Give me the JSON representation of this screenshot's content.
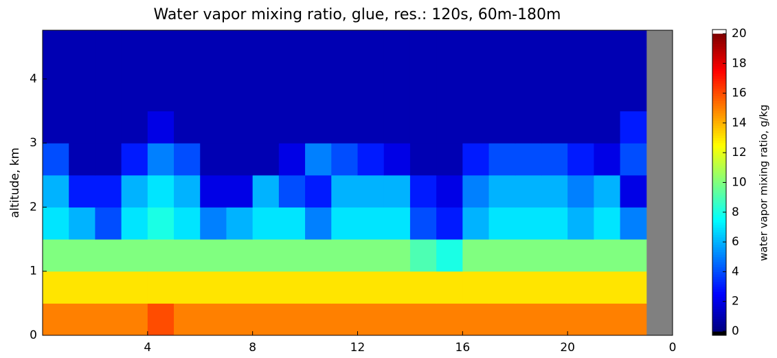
{
  "chart_data": {
    "type": "heatmap",
    "title": "Water vapor mixing ratio, glue, res.: 120s, 60m-180m",
    "y_label": "altitude, km",
    "colorbar_label": "water vapor mixing ratio, g/kg",
    "colormap": "jet",
    "xlim": [
      0,
      24
    ],
    "xticks": [
      4,
      8,
      12,
      16,
      20,
      {
        "value": 24,
        "label": "0"
      }
    ],
    "ylim": [
      0,
      4.76
    ],
    "yticks": [
      0,
      1,
      2,
      3,
      4
    ],
    "clim": [
      0,
      20
    ],
    "cticks": [
      0,
      2,
      4,
      6,
      8,
      10,
      12,
      14,
      16,
      18,
      20
    ],
    "xbins": [
      0,
      1,
      2,
      3,
      4,
      5,
      6,
      7,
      8,
      9,
      10,
      11,
      12,
      13,
      14,
      15,
      16,
      17,
      18,
      19,
      20,
      21,
      22,
      23,
      24
    ],
    "ybins": [
      0,
      0.5,
      1,
      1.5,
      2,
      2.5,
      3,
      3.5,
      4,
      4.5,
      4.76
    ],
    "values": [
      [
        15,
        15,
        15,
        15,
        16,
        15,
        15,
        15,
        15,
        15,
        15,
        15,
        15,
        15,
        15,
        15,
        15,
        15,
        15,
        15,
        15,
        15,
        15,
        null
      ],
      [
        13,
        13,
        13,
        13,
        13,
        13,
        13,
        13,
        13,
        13,
        13,
        13,
        13,
        13,
        13,
        13,
        13,
        13,
        13,
        13,
        13,
        13,
        13,
        null
      ],
      [
        10,
        10,
        10,
        10,
        10,
        10,
        10,
        10,
        10,
        10,
        10,
        10,
        10,
        10,
        9,
        8,
        10,
        10,
        10,
        10,
        10,
        10,
        10,
        null
      ],
      [
        7,
        6,
        4,
        7,
        8,
        7,
        5,
        6,
        7,
        7,
        5,
        7,
        7,
        7,
        4,
        3,
        6,
        7,
        7,
        7,
        6,
        7,
        5,
        null
      ],
      [
        6,
        3,
        3,
        6,
        7,
        6,
        2,
        2,
        6,
        4,
        3,
        6,
        6,
        6,
        3,
        2,
        5,
        6,
        6,
        6,
        5,
        6,
        2,
        null
      ],
      [
        4,
        1,
        1,
        3,
        5,
        4,
        1,
        1,
        1,
        2,
        5,
        4,
        3,
        2,
        1,
        1,
        3,
        4,
        4,
        4,
        3,
        2,
        4,
        null
      ],
      [
        1,
        1,
        1,
        1,
        2,
        1,
        1,
        1,
        1,
        1,
        1,
        1,
        1,
        1,
        1,
        1,
        1,
        1,
        1,
        1,
        1,
        1,
        3,
        null
      ],
      [
        1,
        1,
        1,
        1,
        1,
        1,
        1,
        1,
        1,
        1,
        1,
        1,
        1,
        1,
        1,
        1,
        1,
        1,
        1,
        1,
        1,
        1,
        1,
        null
      ],
      [
        1,
        1,
        1,
        1,
        1,
        1,
        1,
        1,
        1,
        1,
        1,
        1,
        1,
        1,
        1,
        1,
        1,
        1,
        1,
        1,
        1,
        1,
        1,
        null
      ],
      [
        1,
        1,
        1,
        1,
        1,
        1,
        1,
        1,
        1,
        1,
        1,
        1,
        1,
        1,
        1,
        1,
        1,
        1,
        1,
        1,
        1,
        1,
        1,
        null
      ]
    ]
  }
}
